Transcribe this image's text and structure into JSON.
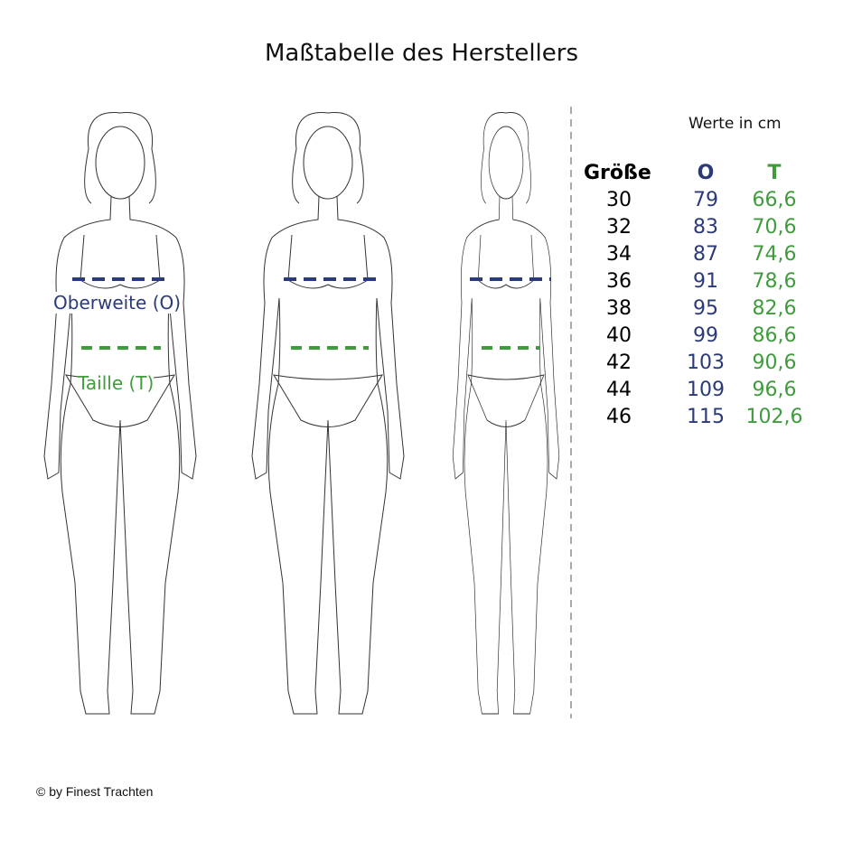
{
  "title": "Maßtabelle des Herstellers",
  "labels": {
    "bust": "Oberweite (O)",
    "waist": "Taille (T)"
  },
  "table": {
    "unit_note": "Werte in cm",
    "headers": [
      "Größe",
      "O",
      "T"
    ],
    "rows": [
      [
        "30",
        "79",
        "66,6"
      ],
      [
        "32",
        "83",
        "70,6"
      ],
      [
        "34",
        "87",
        "74,6"
      ],
      [
        "36",
        "91",
        "78,6"
      ],
      [
        "38",
        "95",
        "82,6"
      ],
      [
        "40",
        "99",
        "86,6"
      ],
      [
        "42",
        "103",
        "90,6"
      ],
      [
        "44",
        "109",
        "96,6"
      ],
      [
        "46",
        "115",
        "102,6"
      ]
    ]
  },
  "colors": {
    "bust": "#2b3a78",
    "waist": "#3f9b3c"
  },
  "footer": "© by Finest Trachten"
}
